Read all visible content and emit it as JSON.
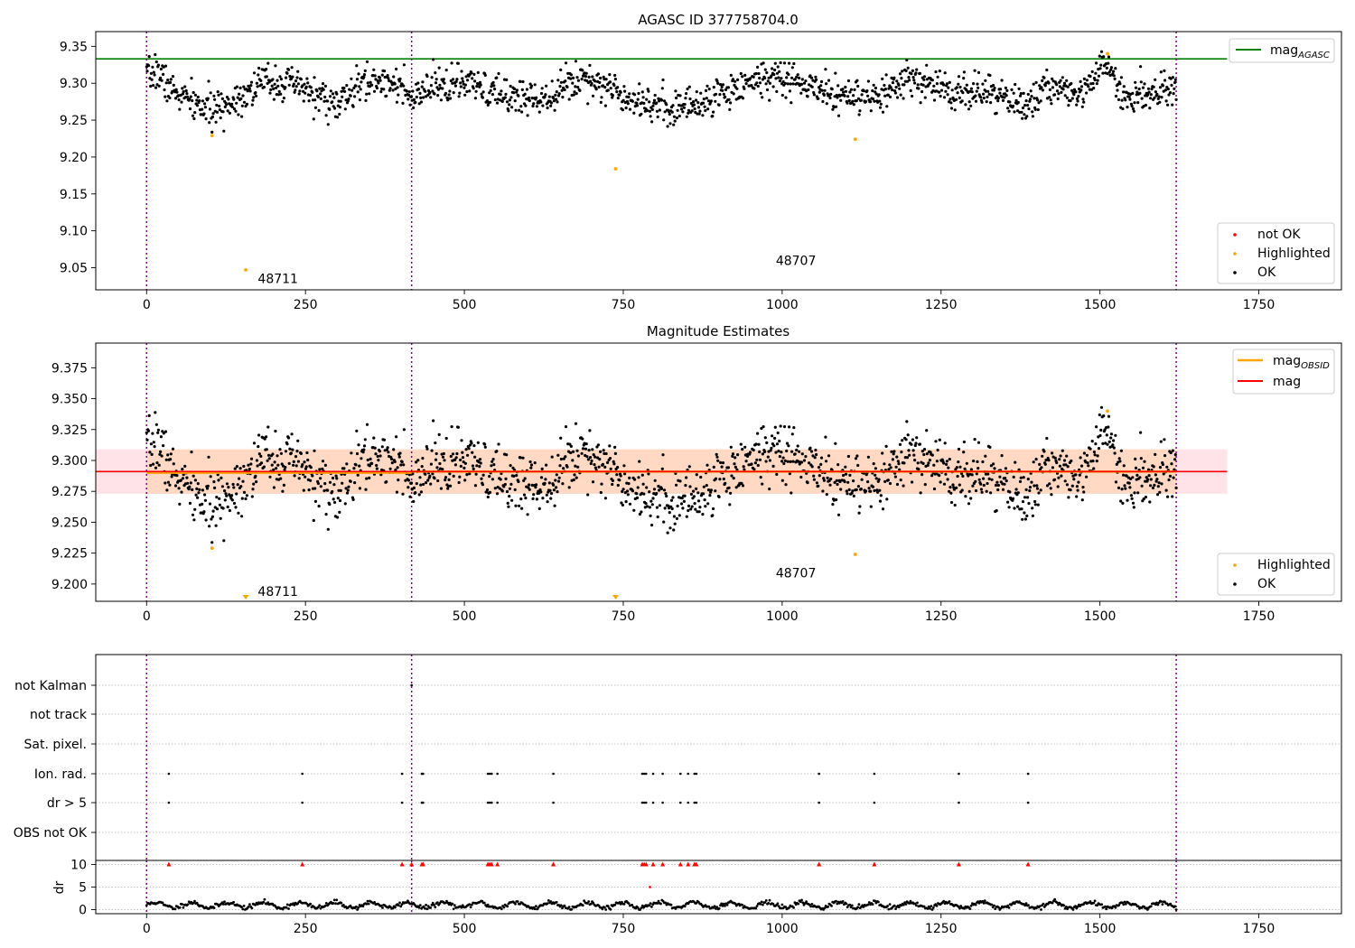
{
  "chart_data": [
    {
      "type": "scatter",
      "title": "AGASC ID 377758704.0",
      "xlim": [
        -80,
        1880
      ],
      "ylim": [
        9.02,
        9.37
      ],
      "x_ticks": [
        0,
        250,
        500,
        750,
        1000,
        1250,
        1500,
        1750
      ],
      "x_tick_labels": [
        "0",
        "250",
        "500",
        "750",
        "1000",
        "1250",
        "1500",
        "1750"
      ],
      "y_ticks": [
        9.05,
        9.1,
        9.15,
        9.2,
        9.25,
        9.3,
        9.35
      ],
      "y_tick_labels": [
        "9.05",
        "9.10",
        "9.15",
        "9.20",
        "9.25",
        "9.30",
        "9.35"
      ],
      "obsid_boundaries": [
        0,
        417,
        1620
      ],
      "obsid_labels": [
        {
          "text": "48711",
          "x": 175,
          "y": 9.035
        },
        {
          "text": "48707",
          "x": 990,
          "y": 9.06
        }
      ],
      "mag_agasc": 9.333,
      "legend_lines": [
        {
          "label": "mag",
          "sub": "AGASC",
          "color": "#008000"
        }
      ],
      "legend_points": [
        {
          "label": "not OK",
          "color": "#ff0000"
        },
        {
          "label": "Highlighted",
          "color": "#ffa500"
        },
        {
          "label": "OK",
          "color": "#000000"
        }
      ],
      "highlighted_points": [
        {
          "x": 103,
          "y": 9.229
        },
        {
          "x": 156,
          "y": 9.047
        },
        {
          "x": 738,
          "y": 9.184
        },
        {
          "x": 1115,
          "y": 9.224
        },
        {
          "x": 1512,
          "y": 9.34
        }
      ],
      "ok_trend": [
        {
          "x": 0,
          "y": 9.305
        },
        {
          "x": 15,
          "y": 9.318
        },
        {
          "x": 40,
          "y": 9.29
        },
        {
          "x": 80,
          "y": 9.27
        },
        {
          "x": 110,
          "y": 9.262
        },
        {
          "x": 150,
          "y": 9.285
        },
        {
          "x": 190,
          "y": 9.305
        },
        {
          "x": 240,
          "y": 9.295
        },
        {
          "x": 300,
          "y": 9.27
        },
        {
          "x": 340,
          "y": 9.3
        },
        {
          "x": 390,
          "y": 9.305
        },
        {
          "x": 417,
          "y": 9.275
        },
        {
          "x": 450,
          "y": 9.295
        },
        {
          "x": 500,
          "y": 9.3
        },
        {
          "x": 550,
          "y": 9.285
        },
        {
          "x": 620,
          "y": 9.28
        },
        {
          "x": 690,
          "y": 9.31
        },
        {
          "x": 750,
          "y": 9.285
        },
        {
          "x": 820,
          "y": 9.265
        },
        {
          "x": 880,
          "y": 9.275
        },
        {
          "x": 940,
          "y": 9.3
        },
        {
          "x": 990,
          "y": 9.31
        },
        {
          "x": 1060,
          "y": 9.29
        },
        {
          "x": 1140,
          "y": 9.275
        },
        {
          "x": 1200,
          "y": 9.305
        },
        {
          "x": 1270,
          "y": 9.29
        },
        {
          "x": 1340,
          "y": 9.285
        },
        {
          "x": 1380,
          "y": 9.268
        },
        {
          "x": 1420,
          "y": 9.295
        },
        {
          "x": 1470,
          "y": 9.29
        },
        {
          "x": 1510,
          "y": 9.325
        },
        {
          "x": 1540,
          "y": 9.28
        },
        {
          "x": 1600,
          "y": 9.295
        },
        {
          "x": 1620,
          "y": 9.29
        }
      ],
      "ok_point_count": 1560,
      "ok_scatter_sigma": 0.012,
      "ok_point_seed": 7
    },
    {
      "type": "scatter",
      "title": "Magnitude Estimates",
      "xlim": [
        -80,
        1880
      ],
      "ylim": [
        9.186,
        9.395
      ],
      "x_ticks": [
        0,
        250,
        500,
        750,
        1000,
        1250,
        1500,
        1750
      ],
      "x_tick_labels": [
        "0",
        "250",
        "500",
        "750",
        "1000",
        "1250",
        "1500",
        "1750"
      ],
      "y_ticks": [
        9.2,
        9.225,
        9.25,
        9.275,
        9.3,
        9.325,
        9.35,
        9.375
      ],
      "y_tick_labels": [
        "9.200",
        "9.225",
        "9.250",
        "9.275",
        "9.300",
        "9.325",
        "9.350",
        "9.375"
      ],
      "obsid_boundaries": [
        0,
        417,
        1620
      ],
      "obsid_labels": [
        {
          "text": "48711",
          "x": 175,
          "y": 9.194
        },
        {
          "text": "48707",
          "x": 990,
          "y": 9.209
        }
      ],
      "mag": 9.291,
      "mag_band": [
        9.273,
        9.309
      ],
      "mag_obsid": [
        {
          "x0": 0,
          "x1": 417,
          "mag": 9.29
        },
        {
          "x0": 417,
          "x1": 1620,
          "mag": 9.291
        }
      ],
      "legend_lines": [
        {
          "label": "mag",
          "sub": "OBSID",
          "color": "#ffa500"
        },
        {
          "label": "mag",
          "sub": "",
          "color": "#ff0000"
        }
      ],
      "legend_points": [
        {
          "label": "Highlighted",
          "color": "#ffa500"
        },
        {
          "label": "OK",
          "color": "#000000"
        }
      ],
      "highlighted_points": [
        {
          "x": 103,
          "y": 9.229
        },
        {
          "x": 1115,
          "y": 9.224
        },
        {
          "x": 1512,
          "y": 9.34
        }
      ],
      "highlighted_offscale": [
        {
          "x": 156
        },
        {
          "x": 738
        }
      ]
    },
    {
      "type": "scatter",
      "xlim": [
        -80,
        1880
      ],
      "x_ticks": [
        0,
        250,
        500,
        750,
        1000,
        1250,
        1500,
        1750
      ],
      "x_tick_labels": [
        "0",
        "250",
        "500",
        "750",
        "1000",
        "1250",
        "1500",
        "1750"
      ],
      "obsid_boundaries": [
        0,
        417,
        1620
      ],
      "flag_rows": [
        "not Kalman",
        "not track",
        "Sat. pixel.",
        "Ion. rad.",
        "dr > 5",
        "OBS not OK"
      ],
      "flags": {
        "not Kalman": [
          417
        ],
        "not track": [],
        "Sat. pixel.": [],
        "Ion. rad.": [
          35,
          245,
          402,
          433,
          435,
          537,
          540,
          543,
          552,
          640,
          780,
          783,
          786,
          797,
          812,
          840,
          852,
          862,
          865,
          1058,
          1145,
          1278,
          1387
        ],
        "dr > 5": [
          35,
          245,
          402,
          433,
          435,
          537,
          540,
          543,
          552,
          640,
          780,
          783,
          786,
          797,
          812,
          840,
          852,
          862,
          865,
          1058,
          1145,
          1278,
          1387
        ],
        "OBS not OK": []
      },
      "dr_axis": {
        "ylabel": "dr",
        "ylim": [
          -0.5,
          10.5
        ],
        "y_ticks": [
          0,
          5,
          10
        ],
        "y_tick_labels": [
          "0",
          "5",
          "10"
        ],
        "clip_markers": [
          35,
          245,
          402,
          417,
          433,
          435,
          537,
          540,
          543,
          552,
          640,
          780,
          783,
          786,
          797,
          812,
          840,
          852,
          862,
          865,
          1058,
          1145,
          1278,
          1387
        ],
        "clip_value": 10,
        "outlier_points": [
          {
            "x": 792,
            "y": 5.0
          }
        ],
        "typical_value": 1.0
      }
    }
  ],
  "colors": {
    "agasc_line": "#008000",
    "mag_line": "#ff0000",
    "obsid_line": "#ffa500",
    "band_fill": "#ffc0cb",
    "band_fill_obsid": "#ffd5b8",
    "boundary": "#800080",
    "ok": "#000000",
    "highlighted": "#ffa500",
    "not_ok": "#ff0000"
  }
}
